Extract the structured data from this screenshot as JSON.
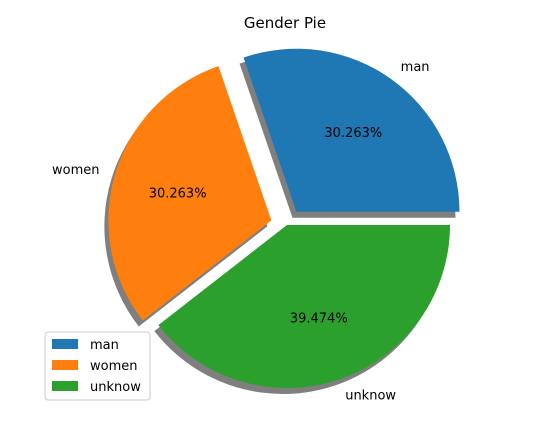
{
  "chart_data": {
    "type": "pie",
    "title": "Gender Pie",
    "labels": [
      "man",
      "women",
      "unknow"
    ],
    "values": [
      30.263,
      30.263,
      39.474
    ],
    "percent_labels": [
      "30.263%",
      "30.263%",
      "39.474%"
    ],
    "colors": [
      "#1f77b4",
      "#ff7f0e",
      "#2ca02c"
    ],
    "explode": [
      0.1,
      0.1,
      0.0
    ],
    "shadow": true,
    "legend_placement": "lower-left"
  }
}
